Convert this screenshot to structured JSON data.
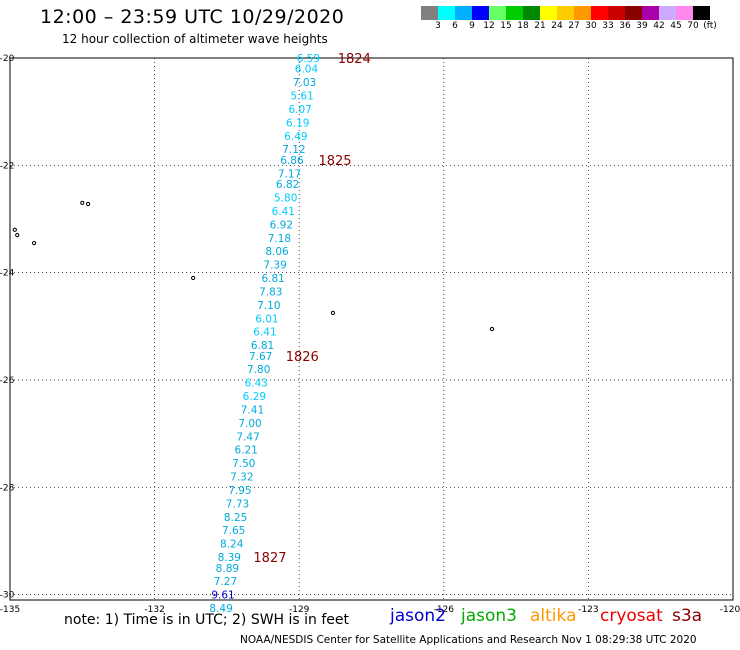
{
  "header": {
    "title": "12:00 – 23:59 UTC 10/29/2020",
    "subtitle": "12 hour collection of altimeter wave heights"
  },
  "legend": {
    "colors": [
      "#808080",
      "#00ffff",
      "#00b0ff",
      "#0000ff",
      "#66ff66",
      "#00cc00",
      "#008800",
      "#ffff00",
      "#ffcc00",
      "#ff9900",
      "#ff0000",
      "#cc0000",
      "#880000",
      "#aa00aa",
      "#ccaaff",
      "#ff88ee",
      "#000000"
    ],
    "labels": [
      "3",
      "6",
      "9",
      "12",
      "15",
      "18",
      "21",
      "24",
      "27",
      "30",
      "33",
      "36",
      "39",
      "42",
      "45",
      "70",
      "(ft)"
    ]
  },
  "axes": {
    "lat_labels": [
      "-20",
      "-22",
      "-24",
      "-26",
      "-28",
      "-30"
    ],
    "lon_labels": [
      "-135",
      "-132",
      "-129",
      "-126",
      "-123",
      "-120"
    ]
  },
  "track": {
    "points": [
      {
        "lat": -20.0,
        "lon": -128.81,
        "v": "6.59",
        "color": "#00ccff"
      },
      {
        "lat": -20.2,
        "lon": -128.85,
        "v": "6.04",
        "color": "#00ccff"
      },
      {
        "lat": -20.45,
        "lon": -128.89,
        "v": "7.03",
        "color": "#00aadd"
      },
      {
        "lat": -20.7,
        "lon": -128.94,
        "v": "5.61",
        "color": "#00ccff"
      },
      {
        "lat": -20.95,
        "lon": -128.98,
        "v": "6.07",
        "color": "#00ccff"
      },
      {
        "lat": -21.2,
        "lon": -129.03,
        "v": "6.19",
        "color": "#00ccff"
      },
      {
        "lat": -21.45,
        "lon": -129.07,
        "v": "6.49",
        "color": "#00ccff"
      },
      {
        "lat": -21.7,
        "lon": -129.11,
        "v": "7.12",
        "color": "#00aadd"
      },
      {
        "lat": -21.9,
        "lon": -129.15,
        "v": "6.86",
        "color": "#00aadd"
      },
      {
        "lat": -22.15,
        "lon": -129.2,
        "v": "7.17",
        "color": "#00aadd"
      },
      {
        "lat": -22.35,
        "lon": -129.24,
        "v": "6.82",
        "color": "#00aadd"
      },
      {
        "lat": -22.6,
        "lon": -129.28,
        "v": "5.80",
        "color": "#00ccff"
      },
      {
        "lat": -22.85,
        "lon": -129.33,
        "v": "6.41",
        "color": "#00ccff"
      },
      {
        "lat": -23.1,
        "lon": -129.37,
        "v": "6.92",
        "color": "#00aadd"
      },
      {
        "lat": -23.35,
        "lon": -129.41,
        "v": "7.18",
        "color": "#00aadd"
      },
      {
        "lat": -23.6,
        "lon": -129.46,
        "v": "8.06",
        "color": "#00aadd"
      },
      {
        "lat": -23.85,
        "lon": -129.5,
        "v": "7.39",
        "color": "#00aadd"
      },
      {
        "lat": -24.1,
        "lon": -129.54,
        "v": "6.81",
        "color": "#00aadd"
      },
      {
        "lat": -24.35,
        "lon": -129.59,
        "v": "7.83",
        "color": "#00aadd"
      },
      {
        "lat": -24.6,
        "lon": -129.63,
        "v": "7.10",
        "color": "#00aadd"
      },
      {
        "lat": -24.85,
        "lon": -129.67,
        "v": "6.01",
        "color": "#00ccff"
      },
      {
        "lat": -25.1,
        "lon": -129.71,
        "v": "6.41",
        "color": "#00ccff"
      },
      {
        "lat": -25.35,
        "lon": -129.76,
        "v": "6.81",
        "color": "#00aadd"
      },
      {
        "lat": -25.55,
        "lon": -129.8,
        "v": "7.67",
        "color": "#00aadd"
      },
      {
        "lat": -25.8,
        "lon": -129.84,
        "v": "7.80",
        "color": "#00aadd"
      },
      {
        "lat": -26.05,
        "lon": -129.89,
        "v": "6.43",
        "color": "#00ccff"
      },
      {
        "lat": -26.3,
        "lon": -129.93,
        "v": "6.29",
        "color": "#00ccff"
      },
      {
        "lat": -26.55,
        "lon": -129.97,
        "v": "7.41",
        "color": "#00aadd"
      },
      {
        "lat": -26.8,
        "lon": -130.02,
        "v": "7.00",
        "color": "#00aadd"
      },
      {
        "lat": -27.05,
        "lon": -130.06,
        "v": "7.47",
        "color": "#00aadd"
      },
      {
        "lat": -27.3,
        "lon": -130.1,
        "v": "6.21",
        "color": "#00aadd"
      },
      {
        "lat": -27.55,
        "lon": -130.15,
        "v": "7.50",
        "color": "#00aadd"
      },
      {
        "lat": -27.8,
        "lon": -130.19,
        "v": "7.32",
        "color": "#00aadd"
      },
      {
        "lat": -28.05,
        "lon": -130.23,
        "v": "7.95",
        "color": "#00aadd"
      },
      {
        "lat": -28.3,
        "lon": -130.28,
        "v": "7.73",
        "color": "#00aadd"
      },
      {
        "lat": -28.55,
        "lon": -130.32,
        "v": "8.25",
        "color": "#00aadd"
      },
      {
        "lat": -28.8,
        "lon": -130.36,
        "v": "7.65",
        "color": "#00aadd"
      },
      {
        "lat": -29.05,
        "lon": -130.4,
        "v": "8.24",
        "color": "#00aadd"
      },
      {
        "lat": -29.3,
        "lon": -130.45,
        "v": "8.39",
        "color": "#00aadd"
      },
      {
        "lat": -29.5,
        "lon": -130.49,
        "v": "8.89",
        "color": "#00aadd"
      },
      {
        "lat": -29.75,
        "lon": -130.53,
        "v": "7.27",
        "color": "#00aadd"
      },
      {
        "lat": -30.0,
        "lon": -130.58,
        "v": "9.61",
        "color": "#0000cc"
      },
      {
        "lat": -30.25,
        "lon": -130.62,
        "v": "8.49",
        "color": "#00aadd"
      }
    ],
    "times": [
      {
        "lat": -20.0,
        "lon": -128.2,
        "t": "1824"
      },
      {
        "lat": -21.9,
        "lon": -128.6,
        "t": "1825"
      },
      {
        "lat": -25.55,
        "lon": -129.28,
        "t": "1826"
      },
      {
        "lat": -29.3,
        "lon": -129.95,
        "t": "1827"
      }
    ]
  },
  "islands": [
    {
      "lat": -22.7,
      "lon": -133.5
    },
    {
      "lat": -22.72,
      "lon": -133.38
    },
    {
      "lat": -23.2,
      "lon": -134.9
    },
    {
      "lat": -23.3,
      "lon": -134.85
    },
    {
      "lat": -23.45,
      "lon": -134.5
    },
    {
      "lat": -24.1,
      "lon": -131.2
    },
    {
      "lat": -24.75,
      "lon": -128.3
    },
    {
      "lat": -25.05,
      "lon": -125.0
    }
  ],
  "footer": {
    "note": "note:  1) Time is in UTC;  2) SWH is in feet",
    "credit": "NOAA/NESDIS Center for Satellite Applications and Research     Nov  1 08:29:38 UTC 2020",
    "satellites": [
      {
        "name": "jason2",
        "color": "#0000cc"
      },
      {
        "name": "jason3",
        "color": "#00aa00"
      },
      {
        "name": "altika",
        "color": "#ff9900"
      },
      {
        "name": "cryosat",
        "color": "#ee0000"
      },
      {
        "name": "s3a",
        "color": "#880000"
      }
    ]
  }
}
